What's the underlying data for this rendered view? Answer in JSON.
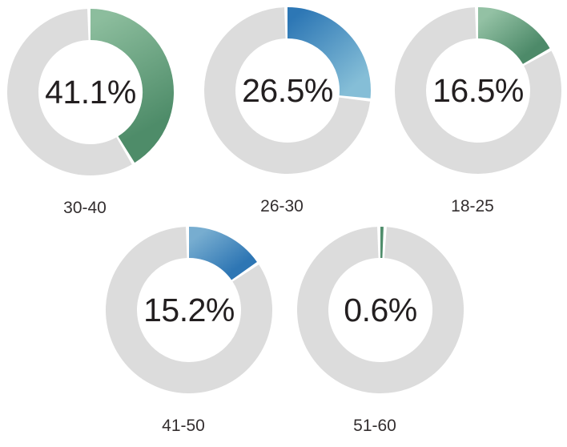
{
  "page": {
    "background": "#ffffff",
    "text_color": "#231f20"
  },
  "chart_data": {
    "type": "pie",
    "subtype": "donut-small-multiples",
    "title": "",
    "unit": "%",
    "legend": "none",
    "ring": {
      "track_color": "#dcdcdc",
      "gap_color": "#ffffff",
      "start_angle_deg": 0,
      "direction": "clockwise"
    },
    "categories": [
      "30-40",
      "26-30",
      "18-25",
      "41-50",
      "51-60"
    ],
    "values": [
      41.1,
      26.5,
      16.5,
      15.2,
      0.6
    ],
    "charts": [
      {
        "label": "30-40",
        "value": 41.1,
        "display": "41.1%",
        "palette": "green",
        "gradient": {
          "stops": [
            "#8cbd9d",
            "#4e8c69"
          ],
          "from": [
            0,
            0
          ],
          "to": [
            0.3,
            1
          ]
        }
      },
      {
        "label": "26-30",
        "value": 26.5,
        "display": "26.5%",
        "palette": "blue",
        "gradient": {
          "stops": [
            "#2d77b5",
            "#85bed7"
          ],
          "from": [
            0,
            0
          ],
          "to": [
            0.8,
            1
          ]
        }
      },
      {
        "label": "18-25",
        "value": 16.5,
        "display": "16.5%",
        "palette": "green",
        "gradient": {
          "stops": [
            "#93c1a4",
            "#4d8a69"
          ],
          "from": [
            0,
            0
          ],
          "to": [
            1,
            0.7
          ]
        }
      },
      {
        "label": "41-50",
        "value": 15.2,
        "display": "15.2%",
        "palette": "blue",
        "gradient": {
          "stops": [
            "#77add0",
            "#2e76b4"
          ],
          "from": [
            0,
            0
          ],
          "to": [
            1,
            0.7
          ]
        }
      },
      {
        "label": "51-60",
        "value": 0.6,
        "display": "0.6%",
        "palette": "green",
        "gradient": {
          "stops": [
            "#63a07e",
            "#4f8d6b"
          ],
          "from": [
            0,
            0
          ],
          "to": [
            0,
            1
          ]
        }
      }
    ]
  }
}
